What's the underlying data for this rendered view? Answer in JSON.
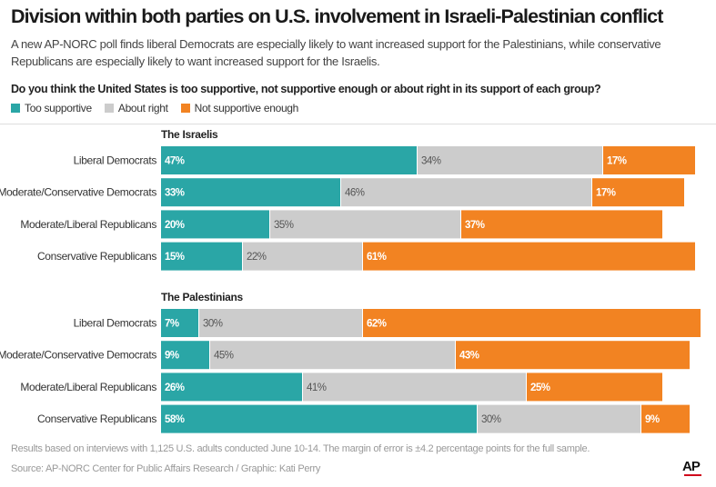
{
  "title": "Division within both parties on U.S. involvement in Israeli-Palestinian conflict",
  "subtitle": "A new AP-NORC poll finds liberal Democrats are especially likely to want increased support for the Palestinians, while conservative Republicans are especially likely to want increased support for the Israelis.",
  "question": "Do you think the United States is too supportive, not supportive enough or about right in its support of each group?",
  "legend": [
    {
      "label": "Too supportive",
      "color": "#2aa6a6"
    },
    {
      "label": "About right",
      "color": "#cccccc"
    },
    {
      "label": "Not supportive enough",
      "color": "#f28322"
    }
  ],
  "footnote": "Results based on interviews with 1,125 U.S. adults conducted June 10-14. The margin of error is ±4.2 percentage points for the full sample.",
  "source": "Source: AP-NORC Center for Public Affairs Research / Graphic: Kati Perry",
  "logo": "AP",
  "chart_data": {
    "type": "bar",
    "orientation": "horizontal",
    "stacked": true,
    "xlim": [
      0,
      100
    ],
    "series_names": [
      "Too supportive",
      "About right",
      "Not supportive enough"
    ],
    "colors": [
      "#2aa6a6",
      "#cccccc",
      "#f28322"
    ],
    "groups": [
      {
        "title": "The Israelis",
        "rows": [
          {
            "label": "Liberal Democrats",
            "values": [
              47,
              34,
              17
            ]
          },
          {
            "label": "Moderate/Conservative Democrats",
            "values": [
              33,
              46,
              17
            ]
          },
          {
            "label": "Moderate/Liberal Republicans",
            "values": [
              20,
              35,
              37
            ]
          },
          {
            "label": "Conservative Republicans",
            "values": [
              15,
              22,
              61
            ]
          }
        ]
      },
      {
        "title": "The Palestinians",
        "rows": [
          {
            "label": "Liberal Democrats",
            "values": [
              7,
              30,
              62
            ]
          },
          {
            "label": "Moderate/Conservative Democrats",
            "values": [
              9,
              45,
              43
            ]
          },
          {
            "label": "Moderate/Liberal Republicans",
            "values": [
              26,
              41,
              25
            ]
          },
          {
            "label": "Conservative Republicans",
            "values": [
              58,
              30,
              9
            ]
          }
        ]
      }
    ]
  }
}
